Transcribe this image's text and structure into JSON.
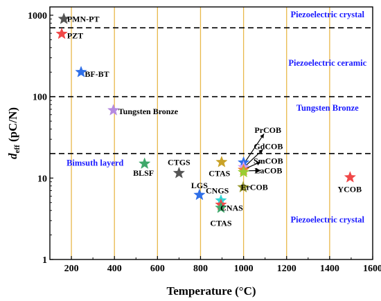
{
  "chart_data": {
    "type": "scatter",
    "xlabel": "Temperature (°C)",
    "ylabel": {
      "main": "d",
      "sub": "eff",
      "rest": " (pC/N)"
    },
    "xlim": [
      100,
      1600
    ],
    "ylim": [
      1,
      1000
    ],
    "yscale": "log",
    "grid": "vertical",
    "grid_color": "#e8b84a",
    "x_ticks": [
      200,
      400,
      600,
      800,
      1000,
      1200,
      1400,
      1600
    ],
    "y_ticks": [
      {
        "value": 1,
        "label": "1"
      },
      {
        "value": 10,
        "label": "10"
      },
      {
        "value": 100,
        "label": "100"
      },
      {
        "value": 1000,
        "label": "1000"
      }
    ],
    "dashed_lines": [
      700,
      100,
      20
    ],
    "regions": [
      {
        "text": "Piezoelectric crystal",
        "x": 1390,
        "y": 940,
        "anchor": "middle"
      },
      {
        "text": "Piezoelectric ceramic",
        "x": 1390,
        "y": 240,
        "anchor": "middle"
      },
      {
        "text": "Tungsten Bronze",
        "x": 1390,
        "y": 67,
        "anchor": "middle"
      },
      {
        "text": "Bimsuth layerd",
        "x": 310,
        "y": 14.2,
        "anchor": "middle"
      },
      {
        "text": "Piezoelectric crystal",
        "x": 1390,
        "y": 2.85,
        "anchor": "middle"
      }
    ],
    "points": [
      {
        "name": "PMN-PT",
        "x": 165,
        "y": 900,
        "color": "#555555",
        "label": "PMN-PT",
        "lx": 180,
        "ly": 900,
        "anchor": "start"
      },
      {
        "name": "PZT",
        "x": 155,
        "y": 590,
        "color": "#f04848",
        "label": "PZT",
        "lx": 180,
        "ly": 560,
        "anchor": "start"
      },
      {
        "name": "BF-BT",
        "x": 245,
        "y": 200,
        "color": "#2f6fe8",
        "label": "BF-BT",
        "lx": 262,
        "ly": 190,
        "anchor": "start"
      },
      {
        "name": "Tungsten Bronze",
        "x": 395,
        "y": 68,
        "color": "#b58ae0",
        "label": "Tungsten Bronze",
        "lx": 418,
        "ly": 66,
        "anchor": "start"
      },
      {
        "name": "BLSF",
        "x": 540,
        "y": 15,
        "color": "#3ea86a",
        "label": "BLSF",
        "lx": 535,
        "ly": 11.5,
        "anchor": "middle"
      },
      {
        "name": "CTGS",
        "x": 700,
        "y": 11.5,
        "color": "#555555",
        "label": "CTGS",
        "lx": 700,
        "ly": 15.6,
        "anchor": "middle"
      },
      {
        "name": "LGS",
        "x": 795,
        "y": 6.2,
        "color": "#2f6fe8",
        "label": "LGS",
        "lx": 795,
        "ly": 8.1,
        "anchor": "middle"
      },
      {
        "name": "CTAS",
        "x": 898,
        "y": 15.7,
        "color": "#c9a228",
        "label": "CTAS",
        "lx": 888,
        "ly": 11.4,
        "anchor": "middle"
      },
      {
        "name": "CNGS",
        "x": 895,
        "y": 5.3,
        "color": "#2fd6d6",
        "label": "CNGS",
        "lx": 878,
        "ly": 7.0,
        "anchor": "middle"
      },
      {
        "name": "CNAS",
        "x": 895,
        "y": 4.7,
        "color": "#f04848",
        "label": "CNAS",
        "lx": 945,
        "ly": 4.3,
        "anchor": "middle"
      },
      {
        "name": "CTAS",
        "x": 895,
        "y": 4.3,
        "color": "#3ea86a",
        "label": "CTAS",
        "lx": 895,
        "ly": 2.8,
        "anchor": "middle"
      },
      {
        "name": "PrCOB",
        "x": 1000,
        "y": 15.5,
        "color": "#2f6fe8",
        "label": "PrCOB",
        "lx": 1113,
        "ly": 39,
        "anchor": "middle",
        "arrow_to": [
          1095,
          35
        ]
      },
      {
        "name": "GdCOB",
        "x": 1000,
        "y": 13.6,
        "color": "#d0a0ff",
        "label": "GdCOB",
        "lx": 1115,
        "ly": 24.5,
        "anchor": "middle",
        "arrow_to": [
          1090,
          22.5
        ]
      },
      {
        "name": "SmCOB",
        "x": 1000,
        "y": 12.6,
        "color": "#f08030",
        "label": "SmCOB",
        "lx": 1115,
        "ly": 16.3,
        "anchor": "middle",
        "arrow_to": [
          1080,
          15.8
        ]
      },
      {
        "name": "LaCOB",
        "x": 1000,
        "y": 11.8,
        "color": "#9acd32",
        "label": "LaCOB",
        "lx": 1115,
        "ly": 12.4,
        "anchor": "middle",
        "arrow_to": [
          1080,
          12.4
        ]
      },
      {
        "name": "ErCOB",
        "x": 998,
        "y": 7.7,
        "color": "#9a9a30",
        "label": "ErCOB",
        "lx": 1050,
        "ly": 7.7,
        "anchor": "middle"
      },
      {
        "name": "YCOB",
        "x": 1495,
        "y": 10.2,
        "color": "#f04848",
        "label": "YCOB",
        "lx": 1493,
        "ly": 7.3,
        "anchor": "middle"
      }
    ]
  }
}
